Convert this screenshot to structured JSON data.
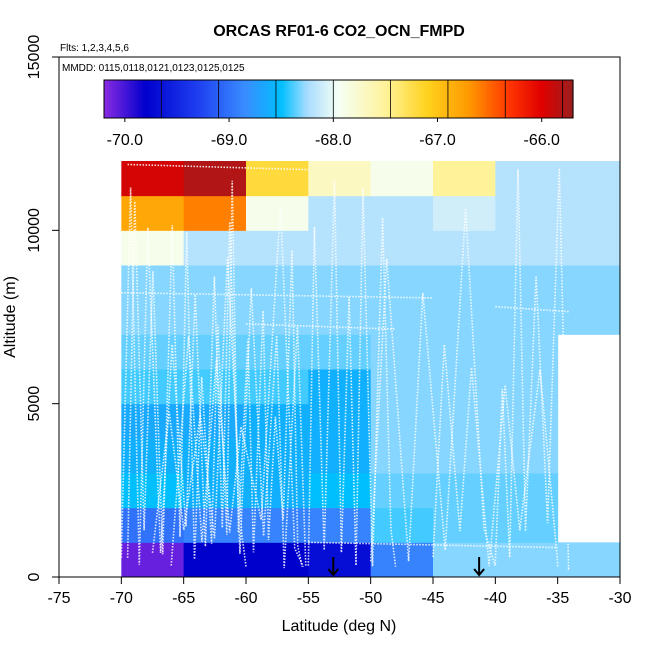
{
  "chart_data": {
    "type": "heatmap",
    "title": "ORCAS RF01-6 CO2_OCN_FMPD",
    "flights_label": "Flts: 1,2,3,4,5,6",
    "dates_label": "MMDD: 0115,0118,0121,0123,0125,0125",
    "xlabel": "Latitude (deg N)",
    "ylabel": "Altitude (m)",
    "xlim": [
      -75,
      -30
    ],
    "ylim": [
      0,
      15000
    ],
    "x_ticks": [
      -75,
      -70,
      -65,
      -60,
      -55,
      -50,
      -45,
      -40,
      -35,
      -30
    ],
    "x_tick_labels": [
      "-75",
      "-70",
      "-65",
      "-60",
      "-55",
      "-50",
      "-45",
      "-40",
      "-35",
      "-30"
    ],
    "y_ticks": [
      0,
      5000,
      10000,
      15000
    ],
    "y_tick_labels": [
      "0",
      "5000",
      "10000",
      "15000"
    ],
    "colorbar": {
      "range": [
        -70.2,
        -65.7
      ],
      "ticks": [
        -70.0,
        -69.0,
        -68.0,
        -67.0,
        -66.0
      ],
      "tick_labels": [
        "-70.0",
        "-69.0",
        "-68.0",
        "-67.0",
        "-66.0"
      ],
      "boundaries": [
        -70.2,
        -69.65,
        -69.1,
        -68.55,
        -68.0,
        -67.45,
        -66.9,
        -66.35,
        -65.8,
        -65.7
      ],
      "stops": [
        {
          "v": -70.2,
          "c": "#8a2be2"
        },
        {
          "v": -69.8,
          "c": "#0000cd"
        },
        {
          "v": -69.3,
          "c": "#1e3ff0"
        },
        {
          "v": -68.85,
          "c": "#3a8cff"
        },
        {
          "v": -68.5,
          "c": "#00bfff"
        },
        {
          "v": -68.25,
          "c": "#a8dcff"
        },
        {
          "v": -67.95,
          "c": "#f5fff5"
        },
        {
          "v": -67.5,
          "c": "#fff39a"
        },
        {
          "v": -67.1,
          "c": "#ffd21e"
        },
        {
          "v": -66.7,
          "c": "#ff9900"
        },
        {
          "v": -66.3,
          "c": "#ff3300"
        },
        {
          "v": -66.0,
          "c": "#e00000"
        },
        {
          "v": -65.7,
          "c": "#9a1f1f"
        }
      ]
    },
    "lat_bins": [
      -70,
      -65,
      -60,
      -55,
      -50,
      -45,
      -40,
      -35,
      -30
    ],
    "alt_bins": [
      0,
      1000,
      2000,
      3000,
      4000,
      5000,
      6000,
      7000,
      8000,
      9000,
      10000,
      11000,
      12000
    ],
    "values": [
      [
        -70.1,
        -69.8,
        -69.8,
        -69.7,
        -68.9,
        -68.3,
        -68.3,
        -68.3
      ],
      [
        -69.0,
        -68.9,
        -68.9,
        -68.9,
        -68.4,
        -68.35,
        -68.35,
        null
      ],
      [
        -68.5,
        -68.6,
        -68.6,
        -68.5,
        -68.35,
        -68.35,
        -68.35,
        null
      ],
      [
        -68.6,
        -68.6,
        -68.6,
        -68.6,
        -68.3,
        -68.3,
        -68.3,
        null
      ],
      [
        -68.65,
        -68.65,
        -68.6,
        -68.6,
        -68.3,
        -68.3,
        -68.3,
        null
      ],
      [
        -68.4,
        -68.4,
        -68.4,
        -68.6,
        -68.3,
        -68.3,
        -68.3,
        null
      ],
      [
        -68.35,
        -68.35,
        -68.35,
        -68.35,
        -68.3,
        -68.3,
        -68.3,
        null
      ],
      [
        -68.3,
        -68.3,
        -68.3,
        -68.3,
        -68.3,
        -68.3,
        -68.3,
        -68.3
      ],
      [
        -68.3,
        -68.3,
        -68.3,
        -68.3,
        -68.3,
        -68.3,
        -68.3,
        -68.3
      ],
      [
        -67.9,
        -68.2,
        -68.2,
        -68.2,
        -68.2,
        -68.2,
        -68.2,
        -68.2
      ],
      [
        -66.8,
        -66.6,
        -67.9,
        -68.2,
        -68.2,
        -68.1,
        -68.2,
        -68.2
      ],
      [
        -65.95,
        -65.8,
        -67.2,
        -67.7,
        -67.9,
        -67.5,
        -68.2,
        -68.2
      ]
    ],
    "arrow_markers_lat": [
      -53.0,
      -41.3
    ],
    "flight_tracks_color": "#ffffff"
  }
}
